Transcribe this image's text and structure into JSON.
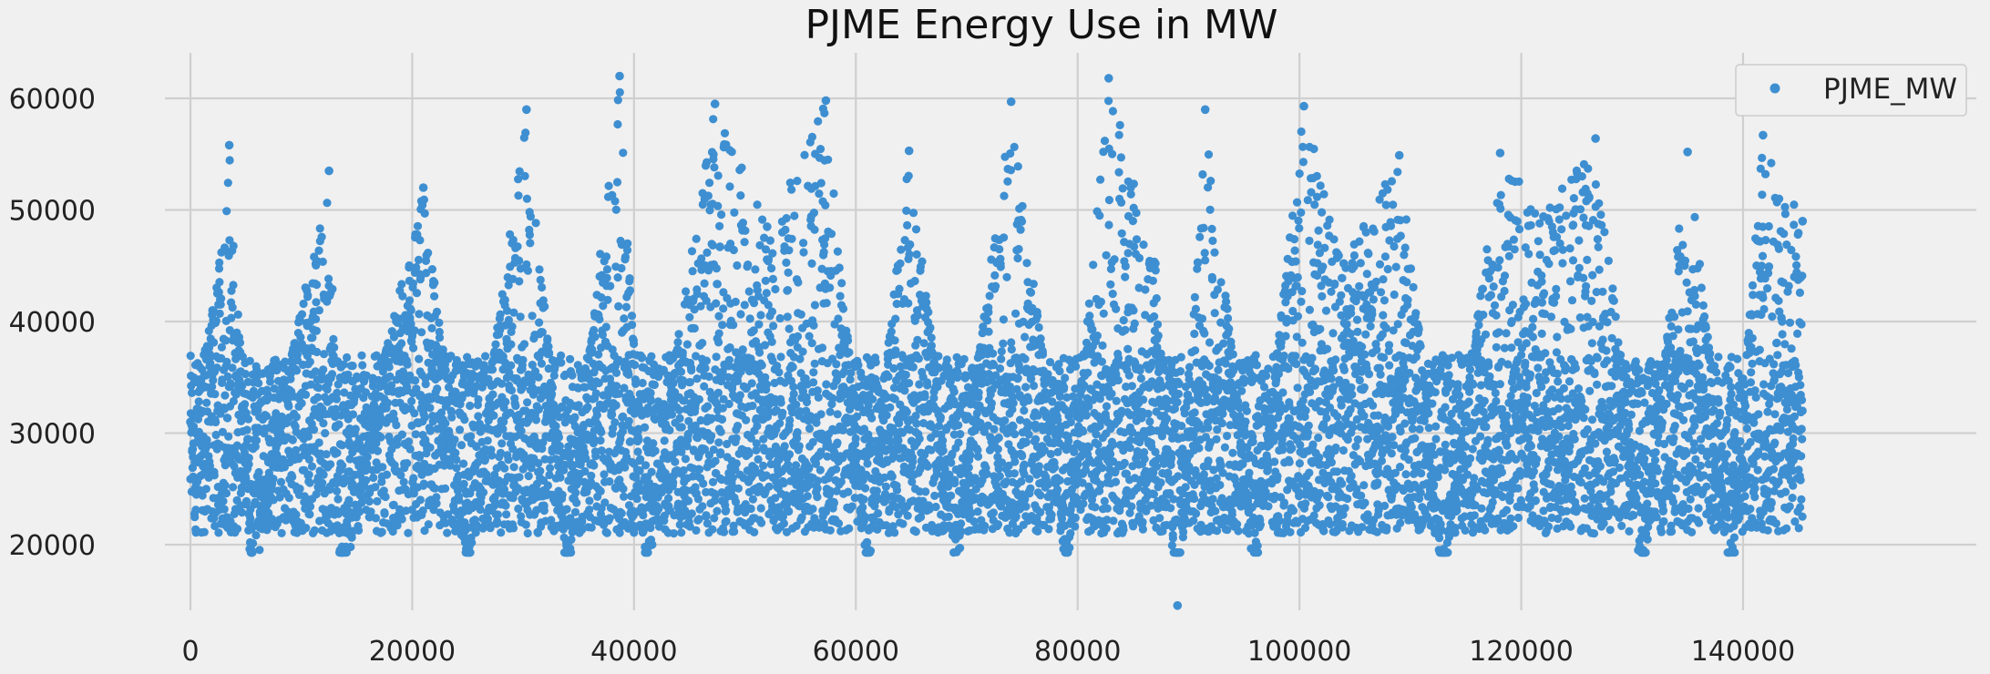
{
  "chart_data": {
    "type": "scatter",
    "title": "PJME Energy Use in MW",
    "xlabel": "",
    "ylabel": "",
    "xlim": [
      -7000,
      152000
    ],
    "ylim": [
      13000,
      64500
    ],
    "x_ticks": [
      0,
      20000,
      40000,
      60000,
      80000,
      100000,
      120000,
      140000
    ],
    "y_ticks": [
      20000,
      30000,
      40000,
      50000,
      60000
    ],
    "grid": true,
    "legend_position": "top-right",
    "n_points": 145366,
    "series": [
      {
        "name": "PJME_MW",
        "color": "#3e8fd1",
        "marker": "circle",
        "x_range": [
          0,
          145366
        ],
        "y_range": [
          14544,
          62009
        ],
        "typical_band": [
          21000,
          37000
        ],
        "points": [
          {
            "x": 0,
            "y": 31000
          },
          {
            "x": 2000,
            "y": 41000
          },
          {
            "x": 3500,
            "y": 55800
          },
          {
            "x": 5500,
            "y": 19500
          },
          {
            "x": 12500,
            "y": 53500
          },
          {
            "x": 13500,
            "y": 19500
          },
          {
            "x": 21000,
            "y": 52000
          },
          {
            "x": 25000,
            "y": 19600
          },
          {
            "x": 30300,
            "y": 59000
          },
          {
            "x": 34000,
            "y": 19600
          },
          {
            "x": 38700,
            "y": 62000
          },
          {
            "x": 41000,
            "y": 19800
          },
          {
            "x": 47300,
            "y": 59500
          },
          {
            "x": 52000,
            "y": 48500
          },
          {
            "x": 57300,
            "y": 59800
          },
          {
            "x": 61000,
            "y": 20200
          },
          {
            "x": 64800,
            "y": 55300
          },
          {
            "x": 69000,
            "y": 20500
          },
          {
            "x": 74000,
            "y": 59700
          },
          {
            "x": 79000,
            "y": 20300
          },
          {
            "x": 82800,
            "y": 61800
          },
          {
            "x": 87000,
            "y": 45200
          },
          {
            "x": 89000,
            "y": 14544
          },
          {
            "x": 91500,
            "y": 59000
          },
          {
            "x": 96000,
            "y": 19800
          },
          {
            "x": 100400,
            "y": 59300
          },
          {
            "x": 104000,
            "y": 45200
          },
          {
            "x": 109000,
            "y": 54900
          },
          {
            "x": 113000,
            "y": 19600
          },
          {
            "x": 118100,
            "y": 55100
          },
          {
            "x": 122000,
            "y": 49400
          },
          {
            "x": 126700,
            "y": 56400
          },
          {
            "x": 131000,
            "y": 19500
          },
          {
            "x": 135000,
            "y": 55200
          },
          {
            "x": 139000,
            "y": 19400
          },
          {
            "x": 141800,
            "y": 56700
          },
          {
            "x": 145366,
            "y": 49000
          }
        ]
      }
    ]
  }
}
